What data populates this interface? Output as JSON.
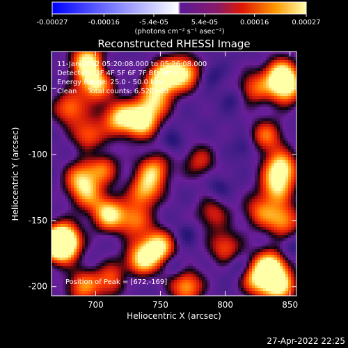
{
  "chart_data": {
    "type": "heatmap",
    "title": "Reconstructed RHESSI Image",
    "xlabel": "Heliocentric X (arcsec)",
    "ylabel": "Heliocentric Y (arcsec)",
    "xlim": [
      666,
      855
    ],
    "ylim": [
      -207,
      -22
    ],
    "x_ticks": [
      700,
      750,
      800,
      850
    ],
    "y_ticks": [
      -50,
      -100,
      -150,
      -200
    ],
    "colorbar": {
      "range": [
        -0.00027,
        0.00027
      ],
      "tick_values": [
        -0.00027,
        -0.00016,
        -5.4e-05,
        5.4e-05,
        0.00016,
        0.00027
      ],
      "tick_labels": [
        "-0.00027",
        "-0.00016",
        "-5.4e-05",
        "5.4e-05",
        "0.00016",
        "0.00027"
      ],
      "unit_label": "(photons cm⁻² s⁻¹ asec⁻²)",
      "colors": [
        "#0000ff",
        "#ffffff",
        "#5a1a96",
        "#e01800",
        "#ff9a00",
        "#ffffb0"
      ]
    },
    "annotations": {
      "time_range": "11-Jan-2002 05:20:08.000 to 05:26:08.000",
      "detectors": "Detectors: 3F 4F 5F 6F 7F 8F, Att 0",
      "energy": "Energy Range: 25.0 - 50.0 keV",
      "clean": "Clean     Total counts: 6.52E+03",
      "peak": "Position of Peak = [672,-169]"
    },
    "hotspots": [
      {
        "x": 694,
        "y": -30,
        "intensity": 1.0
      },
      {
        "x": 700,
        "y": -47,
        "intensity": 0.85
      },
      {
        "x": 752,
        "y": -42,
        "intensity": 0.95
      },
      {
        "x": 768,
        "y": -38,
        "intensity": 0.85
      },
      {
        "x": 843,
        "y": -40,
        "intensity": 0.9
      },
      {
        "x": 847,
        "y": -50,
        "intensity": 0.75
      },
      {
        "x": 822,
        "y": -50,
        "intensity": 0.55
      },
      {
        "x": 745,
        "y": -60,
        "intensity": 0.7
      },
      {
        "x": 735,
        "y": -75,
        "intensity": 0.95
      },
      {
        "x": 718,
        "y": -72,
        "intensity": 0.8
      },
      {
        "x": 695,
        "y": -85,
        "intensity": 0.6
      },
      {
        "x": 680,
        "y": -65,
        "intensity": 0.65
      },
      {
        "x": 832,
        "y": -86,
        "intensity": 0.6
      },
      {
        "x": 843,
        "y": -110,
        "intensity": 0.9
      },
      {
        "x": 840,
        "y": -125,
        "intensity": 0.7
      },
      {
        "x": 745,
        "y": -112,
        "intensity": 0.7
      },
      {
        "x": 738,
        "y": -128,
        "intensity": 0.7
      },
      {
        "x": 705,
        "y": -110,
        "intensity": 0.6
      },
      {
        "x": 688,
        "y": -118,
        "intensity": 0.6
      },
      {
        "x": 693,
        "y": -130,
        "intensity": 0.55
      },
      {
        "x": 710,
        "y": -145,
        "intensity": 0.9
      },
      {
        "x": 730,
        "y": -150,
        "intensity": 0.6
      },
      {
        "x": 780,
        "y": -105,
        "intensity": 0.45
      },
      {
        "x": 790,
        "y": -145,
        "intensity": 0.45
      },
      {
        "x": 827,
        "y": -143,
        "intensity": 0.55
      },
      {
        "x": 675,
        "y": -165,
        "intensity": 1.0
      },
      {
        "x": 672,
        "y": -169,
        "intensity": 1.0
      },
      {
        "x": 748,
        "y": -170,
        "intensity": 0.95
      },
      {
        "x": 735,
        "y": -180,
        "intensity": 0.8
      },
      {
        "x": 800,
        "y": -170,
        "intensity": 0.55
      },
      {
        "x": 845,
        "y": -150,
        "intensity": 0.7
      },
      {
        "x": 835,
        "y": -185,
        "intensity": 0.95
      },
      {
        "x": 842,
        "y": -200,
        "intensity": 0.85
      },
      {
        "x": 825,
        "y": -195,
        "intensity": 0.7
      },
      {
        "x": 770,
        "y": -200,
        "intensity": 0.75
      },
      {
        "x": 712,
        "y": -195,
        "intensity": 0.6
      },
      {
        "x": 690,
        "y": -200,
        "intensity": 0.65
      }
    ],
    "cold_spots": [
      {
        "x": 705,
        "y": -33
      },
      {
        "x": 790,
        "y": -40
      },
      {
        "x": 806,
        "y": -58
      },
      {
        "x": 760,
        "y": -90
      },
      {
        "x": 815,
        "y": -95
      },
      {
        "x": 795,
        "y": -125
      },
      {
        "x": 700,
        "y": -100
      },
      {
        "x": 770,
        "y": -160
      },
      {
        "x": 810,
        "y": -185
      },
      {
        "x": 762,
        "y": -185
      },
      {
        "x": 850,
        "y": -170
      },
      {
        "x": 725,
        "y": -195
      }
    ],
    "peak_position": {
      "x": 672,
      "y": -169
    }
  },
  "footer": {
    "timestamp": "27-Apr-2022 22:25"
  }
}
